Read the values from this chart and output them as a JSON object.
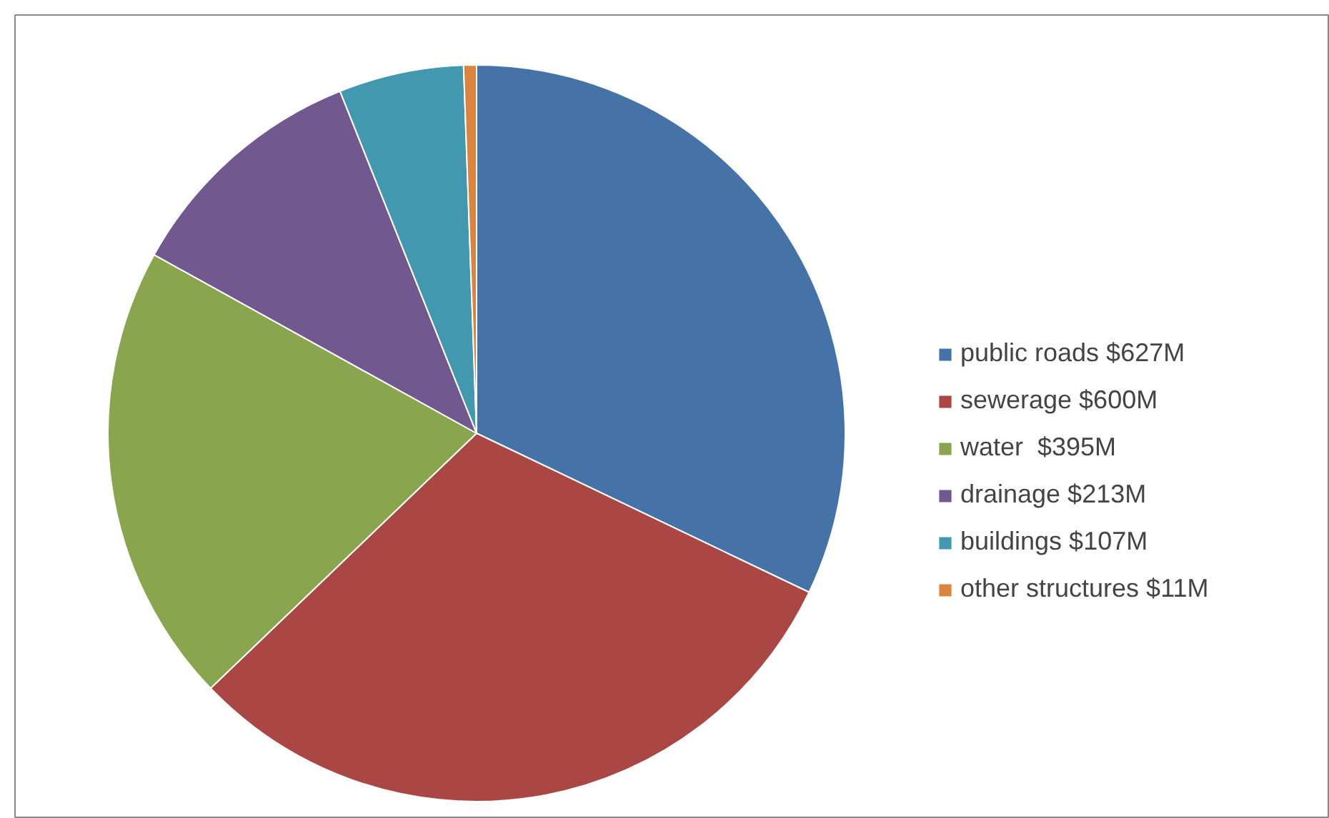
{
  "chart_data": {
    "type": "pie",
    "categories": [
      "public roads",
      "sewerage",
      "water ",
      "drainage",
      "buildings",
      "other structures"
    ],
    "values": [
      627,
      600,
      395,
      213,
      107,
      11
    ],
    "value_labels": [
      "$627M",
      "$600M",
      "$395M",
      "$213M",
      "$107M",
      "$11M"
    ],
    "colors": [
      "#4572a7",
      "#aa4643",
      "#89a54e",
      "#71588f",
      "#4198af",
      "#db843d"
    ],
    "legend": "right"
  }
}
